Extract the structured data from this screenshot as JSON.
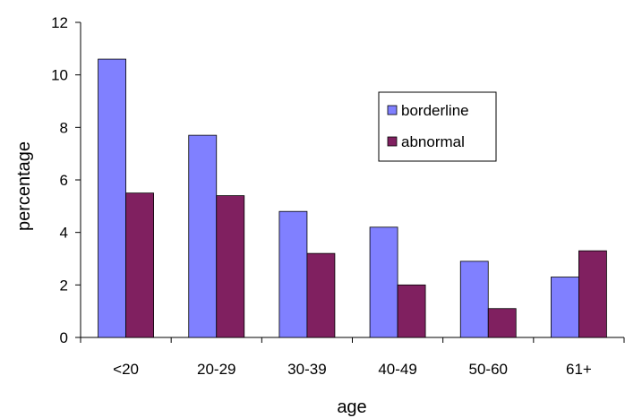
{
  "chart_data": {
    "type": "bar",
    "title": "",
    "xlabel": "age",
    "ylabel": "percentage",
    "ylim": [
      0,
      12
    ],
    "yticks": [
      0,
      2,
      4,
      6,
      8,
      10,
      12
    ],
    "categories": [
      "<20",
      "20-29",
      "30-39",
      "40-49",
      "50-60",
      "61+"
    ],
    "series": [
      {
        "name": "borderline",
        "color": "#8080ff",
        "values": [
          10.6,
          7.7,
          4.8,
          4.2,
          2.9,
          2.3
        ]
      },
      {
        "name": "abnormal",
        "color": "#802060",
        "values": [
          5.5,
          5.4,
          3.2,
          2.0,
          1.1,
          3.3
        ]
      }
    ],
    "grid": false,
    "legend_position": "right"
  }
}
